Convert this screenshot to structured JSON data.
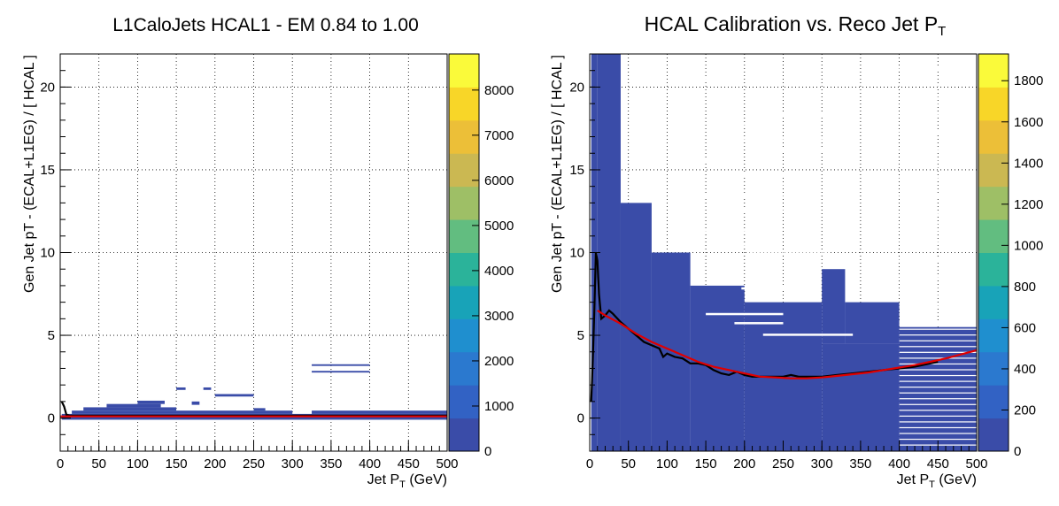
{
  "chart_data": [
    {
      "type": "heatmap",
      "title": "L1CaloJets HCAL1 - EM 0.84 to 1.00",
      "xlabel_main": "Jet P",
      "xlabel_sub": "T",
      "xlabel_unit": " (GeV)",
      "ylabel": "Gen Jet pT - (ECAL+L1EG) / [ HCAL ]",
      "xlim": [
        0,
        500
      ],
      "ylim": [
        -2,
        22
      ],
      "x_ticks": [
        "0",
        "50",
        "100",
        "150",
        "200",
        "250",
        "300",
        "350",
        "400",
        "450",
        "500"
      ],
      "y_ticks": [
        "0",
        "5",
        "10",
        "15",
        "20"
      ],
      "grid": true,
      "colorbar": {
        "zlim": [
          0,
          8800
        ],
        "ticks": [
          "0",
          "1000",
          "2000",
          "3000",
          "4000",
          "5000",
          "6000",
          "7000",
          "8000"
        ]
      },
      "cells": [
        {
          "x0": 2,
          "x1": 500,
          "y0": -0.1,
          "y1": 0.25
        },
        {
          "x0": 15,
          "x1": 300,
          "y0": 0.25,
          "y1": 0.45
        },
        {
          "x0": 30,
          "x1": 150,
          "y0": 0.45,
          "y1": 0.65
        },
        {
          "x0": 60,
          "x1": 130,
          "y0": 0.65,
          "y1": 0.85
        },
        {
          "x0": 100,
          "x1": 135,
          "y0": 0.85,
          "y1": 1.05
        },
        {
          "x0": 170,
          "x1": 180,
          "y0": 0.8,
          "y1": 1.0
        },
        {
          "x0": 200,
          "x1": 250,
          "y0": 1.3,
          "y1": 1.45
        },
        {
          "x0": 150,
          "x1": 162,
          "y0": 1.7,
          "y1": 1.85
        },
        {
          "x0": 185,
          "x1": 195,
          "y0": 1.7,
          "y1": 1.85
        },
        {
          "x0": 325,
          "x1": 400,
          "y0": 3.15,
          "y1": 3.25
        },
        {
          "x0": 325,
          "x1": 400,
          "y0": 2.75,
          "y1": 2.85
        },
        {
          "x0": 250,
          "x1": 265,
          "y0": 0.45,
          "y1": 0.6
        },
        {
          "x0": 325,
          "x1": 500,
          "y0": 0.25,
          "y1": 0.45
        }
      ],
      "series": [
        {
          "color": "#000000",
          "x": [
            2,
            5,
            8,
            12,
            20,
            50,
            100,
            200,
            300,
            400,
            500
          ],
          "y": [
            1.0,
            0.7,
            0.2,
            0.15,
            0.15,
            0.15,
            0.15,
            0.15,
            0.15,
            0.15,
            0.15
          ]
        },
        {
          "color": "#e00000",
          "x": [
            0,
            500
          ],
          "y": [
            0.1,
            0.1
          ]
        }
      ]
    },
    {
      "type": "heatmap",
      "title_main": "HCAL Calibration vs. Reco Jet P",
      "title_sub": "T",
      "xlabel_main": "Jet P",
      "xlabel_sub": "T",
      "xlabel_unit": " (GeV)",
      "ylabel": "Gen Jet pT - (ECAL+L1EG) / [ HCAL ]",
      "xlim": [
        0,
        500
      ],
      "ylim": [
        -2,
        22
      ],
      "x_ticks": [
        "0",
        "50",
        "100",
        "150",
        "200",
        "250",
        "300",
        "350",
        "400",
        "450",
        "500"
      ],
      "y_ticks": [
        "0",
        "5",
        "10",
        "15",
        "20"
      ],
      "grid": true,
      "colorbar": {
        "zlim": [
          0,
          1930
        ],
        "ticks": [
          "0",
          "200",
          "400",
          "600",
          "800",
          "1000",
          "1200",
          "1400",
          "1600",
          "1800"
        ]
      },
      "cells": [
        {
          "x0": 2,
          "x1": 10,
          "y0": -2,
          "y1": 22
        },
        {
          "x0": 10,
          "x1": 40,
          "y0": -2,
          "y1": 22
        },
        {
          "x0": 40,
          "x1": 80,
          "y0": -2,
          "y1": 13
        },
        {
          "x0": 80,
          "x1": 130,
          "y0": -2,
          "y1": 10
        },
        {
          "x0": 130,
          "x1": 200,
          "y0": -2,
          "y1": 8
        },
        {
          "x0": 200,
          "x1": 300,
          "y0": -2,
          "y1": 7
        },
        {
          "x0": 300,
          "x1": 400,
          "y0": -2,
          "y1": 4.5
        },
        {
          "x0": 400,
          "x1": 500,
          "y0": -2,
          "y1": 4
        },
        {
          "x0": 300,
          "x1": 330,
          "y0": 4.5,
          "y1": 9
        },
        {
          "x0": 330,
          "x1": 400,
          "y0": 4.5,
          "y1": 7
        },
        {
          "x0": 400,
          "x1": 500,
          "y0": 4,
          "y1": 5.5
        }
      ],
      "series": [
        {
          "color": "#000000",
          "x": [
            2,
            4,
            6,
            8,
            10,
            12,
            15,
            20,
            25,
            30,
            40,
            50,
            60,
            70,
            80,
            90,
            95,
            100,
            110,
            120,
            130,
            140,
            150,
            160,
            170,
            180,
            190,
            200,
            210,
            220,
            230,
            240,
            250,
            260,
            270,
            280,
            290,
            300,
            320,
            340,
            360,
            380,
            400,
            420,
            440,
            450
          ],
          "y": [
            1.0,
            3.5,
            6.5,
            10.0,
            9.5,
            7.5,
            6.0,
            6.2,
            6.5,
            6.3,
            5.8,
            5.4,
            5.0,
            4.6,
            4.4,
            4.2,
            3.7,
            3.9,
            3.7,
            3.6,
            3.3,
            3.3,
            3.2,
            2.9,
            2.7,
            2.6,
            2.8,
            2.6,
            2.5,
            2.5,
            2.5,
            2.5,
            2.5,
            2.6,
            2.5,
            2.5,
            2.5,
            2.5,
            2.6,
            2.7,
            2.8,
            2.9,
            3.0,
            3.1,
            3.3,
            3.4
          ]
        },
        {
          "color": "#e00000",
          "x": [
            10,
            20,
            40,
            60,
            80,
            100,
            120,
            140,
            160,
            180,
            200,
            220,
            240,
            260,
            280,
            300,
            320,
            340,
            360,
            380,
            400,
            420,
            440,
            460,
            480,
            500
          ],
          "y": [
            6.5,
            6.2,
            5.7,
            5.1,
            4.6,
            4.2,
            3.8,
            3.4,
            3.1,
            2.9,
            2.7,
            2.5,
            2.45,
            2.4,
            2.4,
            2.45,
            2.55,
            2.65,
            2.75,
            2.9,
            3.05,
            3.2,
            3.4,
            3.6,
            3.85,
            4.1
          ]
        }
      ]
    }
  ]
}
